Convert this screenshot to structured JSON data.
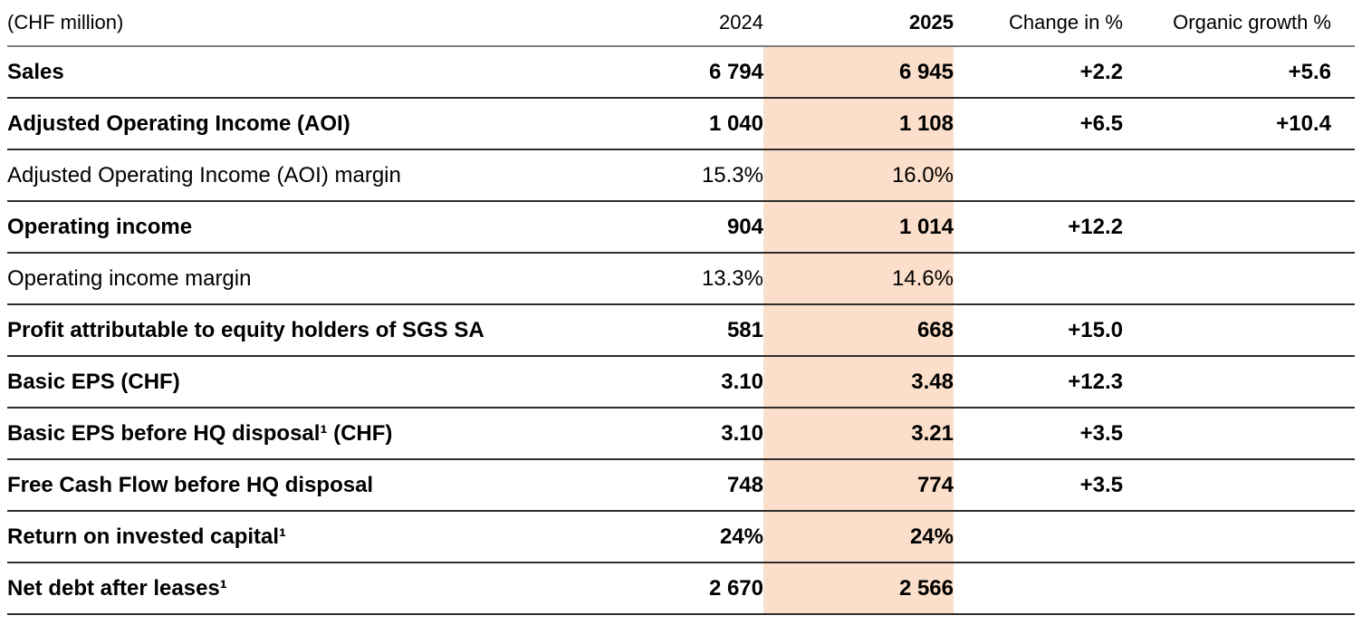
{
  "colors": {
    "highlight_2025_column": "#fbdfca",
    "rule_dark": "#2d2d2d",
    "rule_header": "#7e7e7e",
    "text": "#000000"
  },
  "table": {
    "unit_label": "(CHF million)",
    "columns": {
      "y2024": "2024",
      "y2025": "2025",
      "change": "Change in %",
      "organic": "Organic growth %"
    },
    "rows": [
      {
        "label": "Sales",
        "bold": true,
        "y2024": "6 794",
        "y2025": "6 945",
        "change": "+2.2",
        "organic": "+5.6"
      },
      {
        "label": "Adjusted Operating Income (AOI)",
        "bold": true,
        "y2024": "1 040",
        "y2025": "1 108",
        "change": "+6.5",
        "organic": "+10.4"
      },
      {
        "label": "Adjusted Operating Income (AOI) margin",
        "bold": false,
        "y2024": "15.3%",
        "y2025": "16.0%",
        "change": "",
        "organic": ""
      },
      {
        "label": "Operating income",
        "bold": true,
        "y2024": "904",
        "y2025": "1 014",
        "change": "+12.2",
        "organic": ""
      },
      {
        "label": "Operating income margin",
        "bold": false,
        "y2024": "13.3%",
        "y2025": "14.6%",
        "change": "",
        "organic": ""
      },
      {
        "label": "Profit attributable to equity holders of SGS SA",
        "bold": true,
        "y2024": "581",
        "y2025": "668",
        "change": "+15.0",
        "organic": ""
      },
      {
        "label": "Basic EPS (CHF)",
        "bold": true,
        "y2024": "3.10",
        "y2025": "3.48",
        "change": "+12.3",
        "organic": ""
      },
      {
        "label": "Basic EPS before HQ disposal¹ (CHF)",
        "bold": true,
        "y2024": "3.10",
        "y2025": "3.21",
        "change": "+3.5",
        "organic": ""
      },
      {
        "label": "Free Cash Flow before HQ disposal",
        "bold": true,
        "y2024": "748",
        "y2025": "774",
        "change": "+3.5",
        "organic": ""
      },
      {
        "label": "Return on invested capital¹",
        "bold": true,
        "y2024": "24%",
        "y2025": "24%",
        "change": "",
        "organic": ""
      },
      {
        "label": "Net debt after leases¹",
        "bold": true,
        "y2024": "2 670",
        "y2025": "2 566",
        "change": "",
        "organic": ""
      }
    ]
  }
}
